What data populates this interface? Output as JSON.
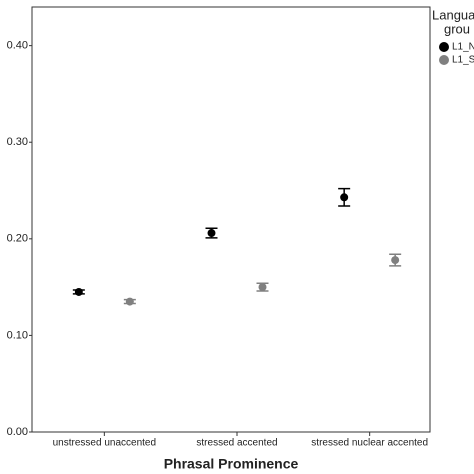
{
  "chart_data": {
    "type": "errorbar-point",
    "x_label": "Phrasal Prominence",
    "categories": [
      "unstressed unaccented",
      "stressed accented",
      "stressed nuclear accented"
    ],
    "legend_title": [
      "Langua",
      "grou"
    ],
    "series": [
      {
        "name": "L1_N",
        "color": "#000000",
        "values": [
          0.145,
          0.206,
          0.243
        ],
        "errors": [
          0.002,
          0.005,
          0.009
        ]
      },
      {
        "name": "L1_S",
        "color": "#808080",
        "values": [
          0.135,
          0.15,
          0.178
        ],
        "errors": [
          0.002,
          0.004,
          0.006
        ]
      }
    ],
    "ylim": [
      0,
      0.44
    ],
    "yticks": [
      {
        "value": 0,
        "label": "0.00"
      },
      {
        "value": 0.1,
        "label": "0.10"
      },
      {
        "value": 0.2,
        "label": "0.20"
      },
      {
        "value": 0.3,
        "label": "0.30"
      },
      {
        "value": 0.4,
        "label": "0.40"
      }
    ],
    "grid": false
  }
}
